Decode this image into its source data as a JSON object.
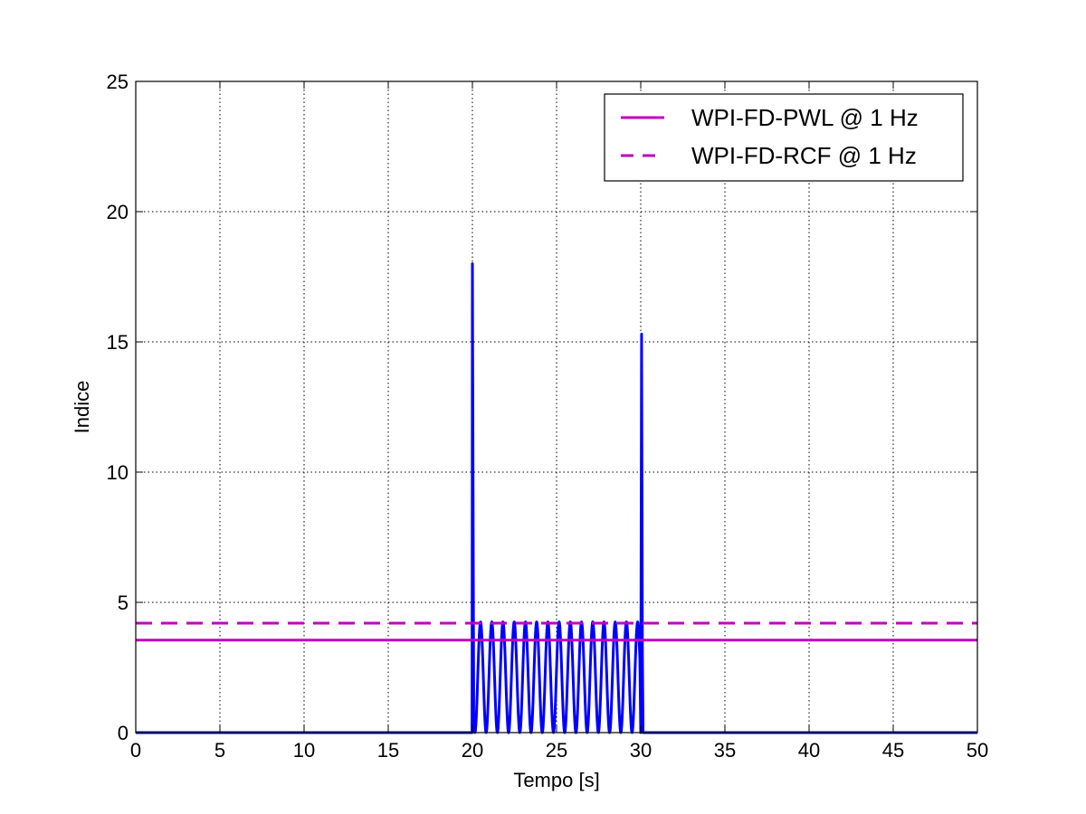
{
  "chart_data": {
    "type": "line",
    "title": "",
    "xlabel": "Tempo [s]",
    "ylabel": "Indice",
    "xlim": [
      0,
      50
    ],
    "ylim": [
      0,
      25
    ],
    "xticks": [
      0,
      5,
      10,
      15,
      20,
      25,
      30,
      35,
      40,
      45,
      50
    ],
    "yticks": [
      0,
      5,
      10,
      15,
      20,
      25
    ],
    "xtick_labels": [
      "0",
      "5",
      "10",
      "15",
      "20",
      "25",
      "30",
      "35",
      "40",
      "45",
      "50"
    ],
    "ytick_labels": [
      "0",
      "5",
      "10",
      "15",
      "20",
      "25"
    ],
    "grid": true,
    "legend_position": "top-right",
    "series": [
      {
        "name": "WPI-FD-PWL @ 1 Hz",
        "color": "#bf00bf",
        "style": "solid",
        "x": [
          0,
          50
        ],
        "y": [
          3.55,
          3.55
        ]
      },
      {
        "name": "WPI-FD-RCF @ 1 Hz",
        "color": "#bf00bf",
        "style": "dashed",
        "x": [
          0,
          50
        ],
        "y": [
          4.2,
          4.2
        ]
      },
      {
        "color": "#0000ff",
        "style": "solid",
        "x": [
          0,
          19.98,
          20.0,
          20.08,
          20.15,
          30.0,
          30.05,
          30.1,
          30.14,
          50
        ],
        "y": [
          0,
          0,
          18.0,
          0.3,
          0,
          0,
          15.3,
          3.0,
          0,
          0
        ],
        "oscillation": {
          "from": 20.15,
          "to": 29.95,
          "frequency_hz": 1.5,
          "min": 0,
          "max": 4.25
        }
      }
    ]
  }
}
